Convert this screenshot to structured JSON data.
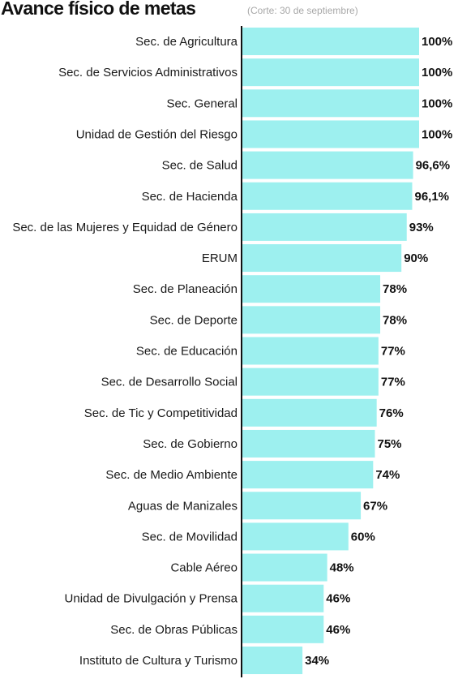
{
  "header": {
    "title": "Avance físico de metas",
    "subtitle": "(Corte: 30 de septiembre)"
  },
  "colors": {
    "bar": "#9df0ef",
    "axis": "#111111",
    "text": "#1a1a1a"
  },
  "chart_data": {
    "type": "bar",
    "orientation": "horizontal",
    "title": "Avance físico de metas",
    "subtitle": "(Corte: 30 de septiembre)",
    "xlim": [
      0,
      100
    ],
    "grid": false,
    "legend": "none",
    "categories": [
      "Sec. de Agricultura",
      "Sec. de Servicios Administrativos",
      "Sec. General",
      "Unidad de Gestión del Riesgo",
      "Sec. de Salud",
      "Sec. de Hacienda",
      "Sec. de las Mujeres y Equidad de Género",
      "ERUM",
      "Sec. de Planeación",
      "Sec. de Deporte",
      "Sec. de Educación",
      "Sec. de Desarrollo Social",
      "Sec. de Tic y Competitividad",
      "Sec. de Gobierno",
      "Sec. de Medio Ambiente",
      "Aguas de Manizales",
      "Sec. de Movilidad",
      "Cable Aéreo",
      "Unidad de Divulgación y Prensa",
      "Sec. de Obras Públicas",
      "Instituto de Cultura y Turismo"
    ],
    "values": [
      100,
      100,
      100,
      100,
      96.6,
      96.1,
      93,
      90,
      78,
      78,
      77,
      77,
      76,
      75,
      74,
      67,
      60,
      48,
      46,
      46,
      34
    ],
    "value_labels": [
      "100%",
      "100%",
      "100%",
      "100%",
      "96,6%",
      "96,1%",
      "93%",
      "90%",
      "78%",
      "78%",
      "77%",
      "77%",
      "76%",
      "75%",
      "74%",
      "67%",
      "60%",
      "48%",
      "46%",
      "46%",
      "34%"
    ]
  }
}
